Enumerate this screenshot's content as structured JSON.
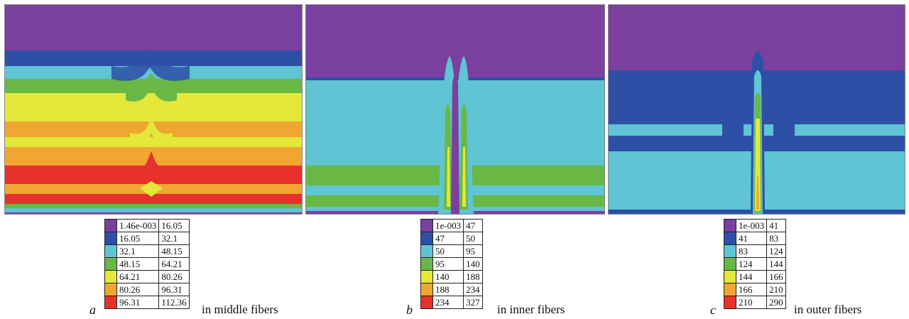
{
  "colors": {
    "purple": "#7b3fa0",
    "dark_blue": "#2e4fa6",
    "light_blue": "#5fc4d4",
    "green": "#69b845",
    "yellow": "#e3e83a",
    "orange": "#f0a631",
    "red": "#e8312c"
  },
  "panels": [
    {
      "letter": "a",
      "caption": "in middle fibers",
      "legend": [
        {
          "from": "1.46e-003",
          "to": "16.05",
          "color": "purple"
        },
        {
          "from": "16.05",
          "to": "32.1",
          "color": "dark_blue"
        },
        {
          "from": "32.1",
          "to": "48.15",
          "color": "light_blue"
        },
        {
          "from": "48.15",
          "to": "64.21",
          "color": "green"
        },
        {
          "from": "64.21",
          "to": "80.26",
          "color": "yellow"
        },
        {
          "from": "80.26",
          "to": "96.31",
          "color": "orange"
        },
        {
          "from": "96.31",
          "to": "112.36",
          "color": "red"
        }
      ]
    },
    {
      "letter": "b",
      "caption": "in inner fibers",
      "legend": [
        {
          "from": "1e-003",
          "to": "47",
          "color": "purple"
        },
        {
          "from": "47",
          "to": "50",
          "color": "dark_blue"
        },
        {
          "from": "50",
          "to": "95",
          "color": "light_blue"
        },
        {
          "from": "95",
          "to": "140",
          "color": "green"
        },
        {
          "from": "140",
          "to": "188",
          "color": "yellow"
        },
        {
          "from": "188",
          "to": "234",
          "color": "orange"
        },
        {
          "from": "234",
          "to": "327",
          "color": "red"
        }
      ]
    },
    {
      "letter": "c",
      "caption": "in outer fibers",
      "legend": [
        {
          "from": "1e-003",
          "to": "41",
          "color": "purple"
        },
        {
          "from": "41",
          "to": "83",
          "color": "dark_blue"
        },
        {
          "from": "83",
          "to": "124",
          "color": "light_blue"
        },
        {
          "from": "124",
          "to": "144",
          "color": "green"
        },
        {
          "from": "144",
          "to": "166",
          "color": "yellow"
        },
        {
          "from": "166",
          "to": "210",
          "color": "orange"
        },
        {
          "from": "210",
          "to": "290",
          "color": "red"
        }
      ]
    }
  ]
}
